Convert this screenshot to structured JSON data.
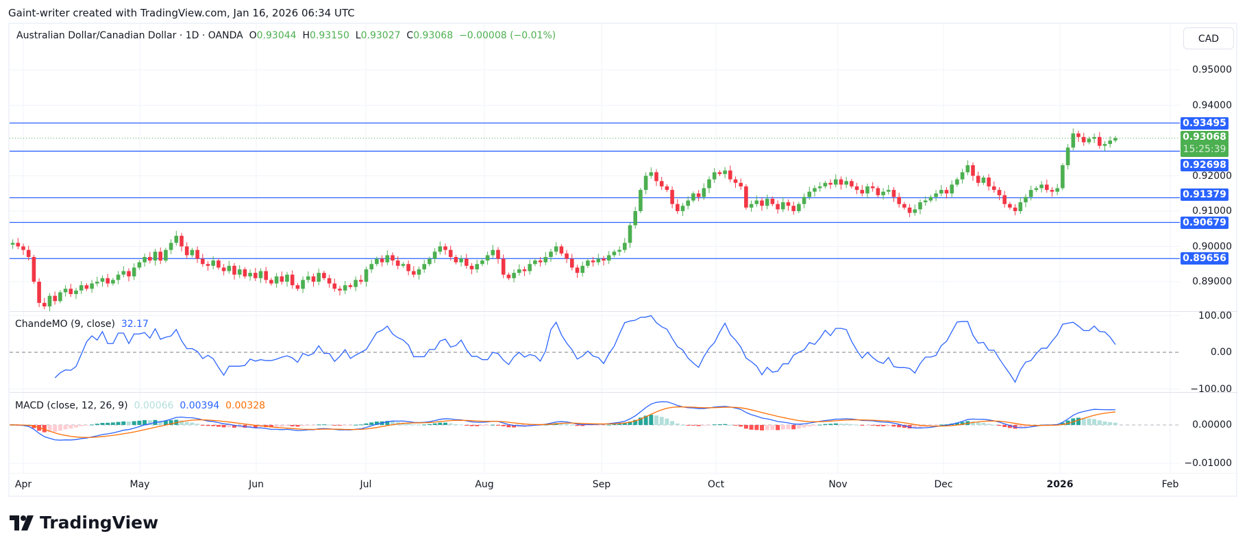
{
  "credit": "Gaint-writer created with TradingView.com, Jan 16, 2026 06:34 UTC",
  "legend": {
    "symbol": "Australian Dollar/Canadian Dollar · 1D · OANDA",
    "o_label": "O",
    "o": "0.93044",
    "h_label": "H",
    "h": "0.93150",
    "l_label": "L",
    "l": "0.93027",
    "c_label": "C",
    "c": "0.93068",
    "change": "−0.00008 (−0.01%)"
  },
  "currency_button": "CAD",
  "price_axis": {
    "ticks": [
      "0.95000",
      "0.94000",
      "0.92000",
      "0.91000",
      "0.90000",
      "0.89000"
    ],
    "tick_values": [
      0.95,
      0.94,
      0.92,
      0.91,
      0.9,
      0.89
    ]
  },
  "levels": [
    {
      "label": "0.93495",
      "value": 0.93495
    },
    {
      "label": "0.92698",
      "value": 0.92698
    },
    {
      "label": "0.91379",
      "value": 0.91379
    },
    {
      "label": "0.90679",
      "value": 0.90679
    },
    {
      "label": "0.89656",
      "value": 0.89656
    }
  ],
  "current_price": {
    "label": "0.93068",
    "value": 0.93068,
    "countdown": "15:25:39"
  },
  "chande": {
    "label": "ChandeMO (9, close)",
    "value": "32.17",
    "ticks": [
      "100.00",
      "0.00",
      "−100.00"
    ],
    "color": "#2962ff"
  },
  "macd": {
    "label": "MACD (close, 12, 26, 9)",
    "hist": "0.00066",
    "macd": "0.00394",
    "signal": "0.00328",
    "ticks": [
      "0.00000",
      "−0.01000"
    ],
    "colors": {
      "macd": "#2962ff",
      "signal": "#ff6d00",
      "hist_up": "#26a69a",
      "hist_up_weak": "#b2dfdb",
      "hist_down": "#ff5252",
      "hist_down_weak": "#ffcdd2"
    }
  },
  "time_axis": [
    {
      "label": "Apr"
    },
    {
      "label": "May"
    },
    {
      "label": "Jun"
    },
    {
      "label": "Jul"
    },
    {
      "label": "Aug"
    },
    {
      "label": "Sep"
    },
    {
      "label": "Oct"
    },
    {
      "label": "Nov"
    },
    {
      "label": "Dec"
    },
    {
      "label": "2026",
      "bold": true
    },
    {
      "label": "Feb"
    }
  ],
  "logo": "TradingView",
  "colors": {
    "up": "#4caf50",
    "down": "#f23645",
    "level": "#2962ff"
  },
  "chart_data": {
    "type": "candlestick",
    "interval": "1D",
    "first_date": "2025-03-27",
    "close": [
      0.9005,
      0.901,
      0.9,
      0.899,
      0.897,
      0.89,
      0.884,
      0.883,
      0.886,
      0.8845,
      0.887,
      0.888,
      0.8865,
      0.8875,
      0.889,
      0.888,
      0.8895,
      0.89,
      0.891,
      0.8895,
      0.8905,
      0.892,
      0.893,
      0.8915,
      0.894,
      0.8955,
      0.897,
      0.896,
      0.8985,
      0.896,
      0.899,
      0.901,
      0.903,
      0.9,
      0.8975,
      0.899,
      0.8965,
      0.895,
      0.8945,
      0.896,
      0.894,
      0.893,
      0.8945,
      0.892,
      0.8935,
      0.8915,
      0.8925,
      0.891,
      0.893,
      0.8905,
      0.8895,
      0.8915,
      0.89,
      0.892,
      0.889,
      0.888,
      0.8905,
      0.8915,
      0.89,
      0.8925,
      0.891,
      0.8895,
      0.888,
      0.8875,
      0.889,
      0.8885,
      0.8905,
      0.89,
      0.8935,
      0.895,
      0.8965,
      0.8955,
      0.8975,
      0.896,
      0.8945,
      0.895,
      0.893,
      0.892,
      0.8935,
      0.895,
      0.8965,
      0.8985,
      0.9,
      0.899,
      0.897,
      0.8955,
      0.8965,
      0.8945,
      0.8935,
      0.895,
      0.896,
      0.8975,
      0.899,
      0.8965,
      0.892,
      0.891,
      0.8925,
      0.8935,
      0.893,
      0.895,
      0.896,
      0.8955,
      0.897,
      0.8985,
      0.9,
      0.898,
      0.8965,
      0.894,
      0.8925,
      0.8945,
      0.896,
      0.8955,
      0.8965,
      0.896,
      0.8975,
      0.8985,
      0.899,
      0.901,
      0.906,
      0.91,
      0.916,
      0.92,
      0.921,
      0.9185,
      0.917,
      0.916,
      0.912,
      0.91,
      0.9115,
      0.913,
      0.915,
      0.914,
      0.9165,
      0.919,
      0.921,
      0.9205,
      0.9215,
      0.919,
      0.918,
      0.917,
      0.911,
      0.912,
      0.913,
      0.9115,
      0.9135,
      0.912,
      0.9105,
      0.9125,
      0.9115,
      0.91,
      0.912,
      0.914,
      0.9155,
      0.9165,
      0.917,
      0.918,
      0.9175,
      0.919,
      0.9175,
      0.9185,
      0.917,
      0.916,
      0.915,
      0.917,
      0.9165,
      0.9145,
      0.9155,
      0.916,
      0.914,
      0.912,
      0.911,
      0.9095,
      0.9105,
      0.9125,
      0.913,
      0.914,
      0.915,
      0.916,
      0.915,
      0.9175,
      0.919,
      0.921,
      0.923,
      0.92,
      0.918,
      0.9195,
      0.917,
      0.916,
      0.9145,
      0.912,
      0.911,
      0.91,
      0.9125,
      0.914,
      0.916,
      0.9165,
      0.9175,
      0.916,
      0.9155,
      0.9165,
      0.923,
      0.928,
      0.932,
      0.931,
      0.9295,
      0.9305,
      0.931,
      0.9285,
      0.929,
      0.93,
      0.9307
    ]
  }
}
